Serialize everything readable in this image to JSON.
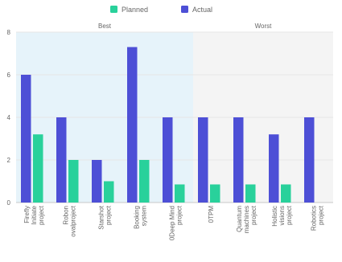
{
  "chart_data": {
    "type": "bar",
    "legend_position": "top-center",
    "grid": true,
    "ylim": [
      0,
      8
    ],
    "yticks": [
      0,
      2,
      4,
      6,
      8
    ],
    "colors": {
      "Planned": "#29d19b",
      "Actual": "#4d4fd6",
      "best_band": "#e6f3fa",
      "worst_band": "#f4f4f4"
    },
    "legend": [
      "Planned",
      "Actual"
    ],
    "categories": [
      [
        "Firefly",
        "Initiate",
        "project"
      ],
      [
        "Robon",
        "ovalproject"
      ],
      [
        "Starshot",
        "project"
      ],
      [
        "Booking",
        "system"
      ],
      [
        "0Deep Mind",
        "project"
      ],
      [
        "0TPM"
      ],
      [
        "Quantum",
        "machines",
        "project"
      ],
      [
        "Holistic",
        "visions",
        "project"
      ],
      [
        "Robotics",
        "project"
      ]
    ],
    "series": [
      {
        "name": "Actual",
        "values": [
          6,
          4,
          2,
          7.3,
          4,
          4,
          4,
          3.2,
          4
        ]
      },
      {
        "name": "Planned",
        "values": [
          3.2,
          2,
          1,
          2,
          0.85,
          0.85,
          0.85,
          0.85,
          0
        ]
      }
    ],
    "bands": [
      {
        "label": "Best",
        "from_index": 0,
        "to_index": 4
      },
      {
        "label": "Worst",
        "from_index": 5,
        "to_index": 8
      }
    ]
  }
}
